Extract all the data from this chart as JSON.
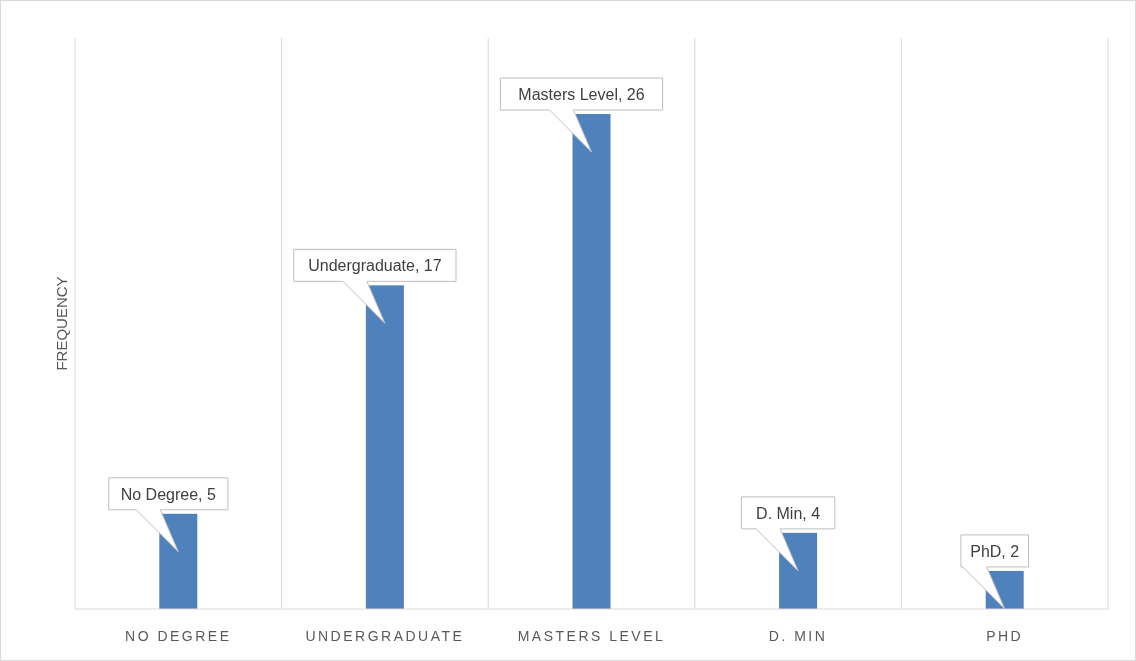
{
  "chart_data": {
    "type": "bar",
    "ylabel": "FREQUENCY",
    "categories": [
      "NO DEGREE",
      "UNDERGRADUATE",
      "MASTERS LEVEL",
      "D. MIN",
      "PHD"
    ],
    "values": [
      5,
      17,
      26,
      4,
      2
    ],
    "color": "#4f81bd",
    "value_labels": [
      "No Degree, 5",
      "Undergraduate, 17",
      "Masters Level, 26",
      "D. Min, 4",
      "PhD, 2"
    ],
    "grid": "x"
  }
}
